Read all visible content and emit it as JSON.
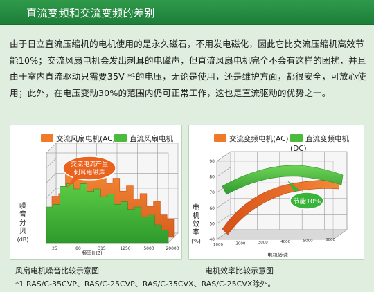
{
  "header": {
    "title": "直流变频和交流变频的差别"
  },
  "paragraph": "由于日立直流压缩机的电机使用的是永久磁石，不用发电磁化，因此它比交流压缩机高效节能10%；交流风扇电机会发出刺耳的电磁声，但直流风扇电机完全不会有这样的困扰，并且由于室内直流驱动只需要35V *¹的电压，无论是使用，还是维护方面，都很安全，可放心使用；此外，在电压变动30%的范围内仍可正常工作，这也是直流驱动的优势之一。",
  "chart_data": [
    {
      "type": "area",
      "legend": [
        {
          "name": "交流风扇电机(AC)",
          "color": "#f07a2a"
        },
        {
          "name": "直流风扇电机(DC)",
          "color": "#4cba3c"
        }
      ],
      "ylabel": [
        "噪",
        "音",
        "分",
        "贝",
        "(dB)"
      ],
      "xlabel": "频率(HZ)",
      "x_ticks": [
        "25",
        "80",
        "315",
        "1250",
        "5000",
        "20000"
      ],
      "callout": [
        "交流电流产生",
        "刺耳电磁声"
      ],
      "series": [
        {
          "name": "交流风扇电机(AC)",
          "values": [
            32,
            34,
            52,
            55,
            50,
            56,
            48,
            50,
            42,
            46,
            36,
            40,
            30,
            34,
            24,
            28,
            18,
            14
          ]
        },
        {
          "name": "直流风扇电机(DC)",
          "values": [
            28,
            30,
            44,
            46,
            42,
            46,
            40,
            42,
            36,
            38,
            30,
            32,
            26,
            28,
            20,
            22,
            14,
            10
          ]
        }
      ],
      "caption": "风扇电机噪音比较示意图"
    },
    {
      "type": "area",
      "legend": [
        {
          "name": "交流变频电机(AC)",
          "color": "#f07a2a"
        },
        {
          "name": "直流变频电机(DC)",
          "color": "#4cba3c"
        }
      ],
      "ylabel": [
        "电",
        "机",
        "效",
        "率",
        "(%)"
      ],
      "xlabel": "电机转速",
      "y_ticks": [
        "40",
        "50",
        "60",
        "70",
        "80",
        "90"
      ],
      "x_ticks": [
        "1000",
        "2000",
        "3000",
        "4000",
        "5000",
        "6000"
      ],
      "callout": "节能10%",
      "caption": "电机效率比较示意图"
    }
  ],
  "footnote": "*1 RAS/C-35CVP、RAS/C-25CVP、RAS/C-35CVX、RAS/C-25CVX除外。"
}
